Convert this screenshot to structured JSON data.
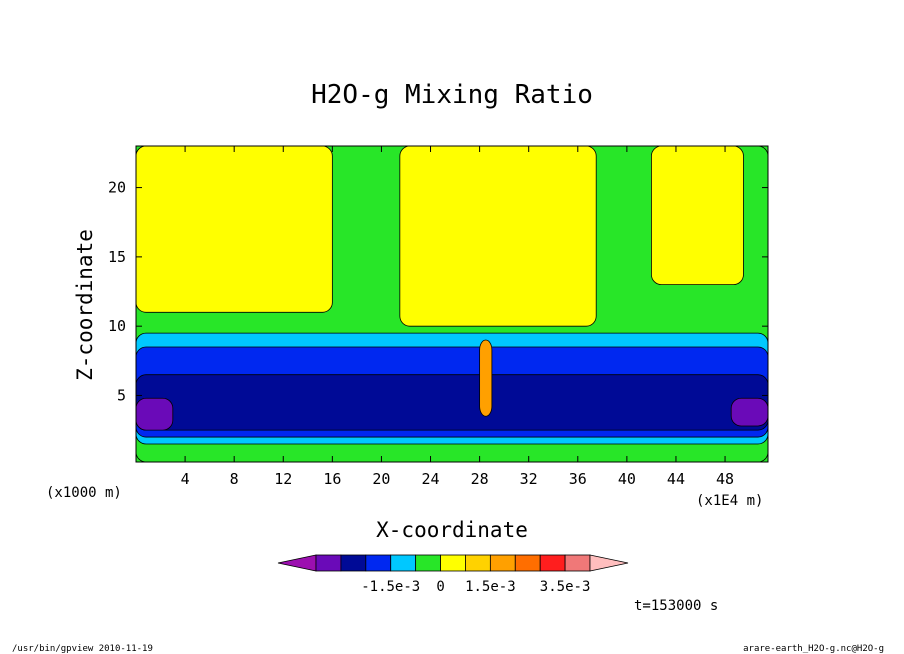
{
  "chart_data": {
    "type": "heatmap",
    "title": "H2O-g Mixing Ratio",
    "xlabel": "X-coordinate",
    "ylabel": "Z-coordinate",
    "x_unit_note": "(x1E4 m)",
    "y_unit_note": "(x1000 m)",
    "xlim": [
      0,
      51.5
    ],
    "ylim": [
      0.2,
      23
    ],
    "x_ticks": [
      4,
      8,
      12,
      16,
      20,
      24,
      28,
      32,
      36,
      40,
      44,
      48
    ],
    "x_tick_labels": [
      "4",
      "8",
      "12",
      "16",
      "20",
      "24",
      "28",
      "32",
      "36",
      "40",
      "44",
      "48"
    ],
    "y_ticks": [
      5,
      10,
      15,
      20
    ],
    "y_tick_labels": [
      "5",
      "10",
      "15",
      "20"
    ],
    "time_label": "t=153000 s",
    "colorbar": {
      "colors": [
        "#9c0fb0",
        "#6a0ab8",
        "#000a96",
        "#0028f0",
        "#00c8ff",
        "#28e628",
        "#ffff00",
        "#ffd200",
        "#ffa000",
        "#ff6e00",
        "#ff1e1e",
        "#f07878",
        "#ffbebe"
      ],
      "tick_labels": [
        "-1.5e-3",
        "0",
        "1.5e-3",
        "3.5e-3"
      ]
    },
    "regions": [
      {
        "level": "green",
        "color": "#28e628",
        "x_range": [
          0,
          51.5
        ],
        "z_range": [
          0.2,
          23
        ]
      },
      {
        "level": "yellow",
        "color": "#ffff00",
        "x_range": [
          0,
          16
        ],
        "z_range": [
          11,
          23
        ]
      },
      {
        "level": "yellow",
        "color": "#ffff00",
        "x_range": [
          21.5,
          37.5
        ],
        "z_range": [
          10,
          23
        ]
      },
      {
        "level": "yellow",
        "color": "#ffff00",
        "x_range": [
          42,
          49.5
        ],
        "z_range": [
          13,
          23
        ]
      },
      {
        "level": "cyan",
        "color": "#00c8ff",
        "x_range": [
          0,
          51.5
        ],
        "z_range": [
          1.5,
          9.5
        ]
      },
      {
        "level": "blue",
        "color": "#0028f0",
        "x_range": [
          0,
          51.5
        ],
        "z_range": [
          2,
          8.5
        ]
      },
      {
        "level": "navy",
        "color": "#000a96",
        "x_range": [
          0,
          51.5
        ],
        "z_range": [
          2.5,
          6.5
        ]
      },
      {
        "level": "purple",
        "color": "#6a0ab8",
        "x_range": [
          0,
          3
        ],
        "z_range": [
          2.5,
          4.8
        ]
      },
      {
        "level": "purple",
        "color": "#6a0ab8",
        "x_range": [
          48.5,
          51.5
        ],
        "z_range": [
          2.8,
          4.8
        ]
      },
      {
        "level": "orange",
        "color": "#ffa000",
        "x_range": [
          28,
          29
        ],
        "z_range": [
          3.5,
          9
        ]
      }
    ],
    "grid": false
  },
  "footer": {
    "left": "/usr/bin/gpview  2010-11-19",
    "right": "arare-earth_H2O-g.nc@H2O-g"
  }
}
